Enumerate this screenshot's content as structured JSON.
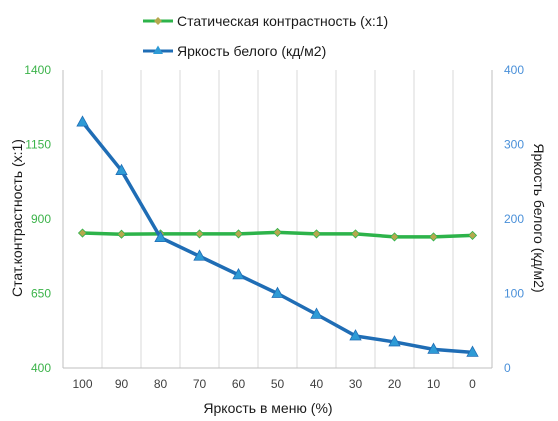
{
  "chart_data": {
    "type": "line",
    "categories": [
      "100",
      "90",
      "80",
      "70",
      "60",
      "50",
      "40",
      "30",
      "20",
      "10",
      "0"
    ],
    "xlabel": "Яркость в меню (%)",
    "y_left": {
      "label": "Стат.контрастность  (x:1)",
      "ticks": [
        "400",
        "650",
        "900",
        "1150",
        "1400"
      ],
      "lim": [
        400,
        1400
      ],
      "color": "#3cb34a"
    },
    "y_right": {
      "label": "Яркость белого (кд/м2)",
      "ticks": [
        "0",
        "100",
        "200",
        "300",
        "400"
      ],
      "lim": [
        0,
        400
      ],
      "color": "#4a90d9"
    },
    "series": [
      {
        "name": "Статическая контрастность  (x:1)",
        "axis": "left",
        "color": "#2db34a",
        "marker_color": "#b5a84e",
        "marker": "diamond",
        "values": [
          853,
          849,
          850,
          850,
          850,
          855,
          850,
          850,
          840,
          840,
          845
        ]
      },
      {
        "name": "Яркость белого (кд/м2)",
        "axis": "right",
        "color": "#1f6db5",
        "marker_color": "#2e9bd6",
        "marker": "triangle",
        "values": [
          330,
          265,
          175,
          150,
          125,
          100,
          72,
          43,
          35,
          25,
          21
        ]
      }
    ],
    "grid": "vertical",
    "legend_position": "top"
  }
}
